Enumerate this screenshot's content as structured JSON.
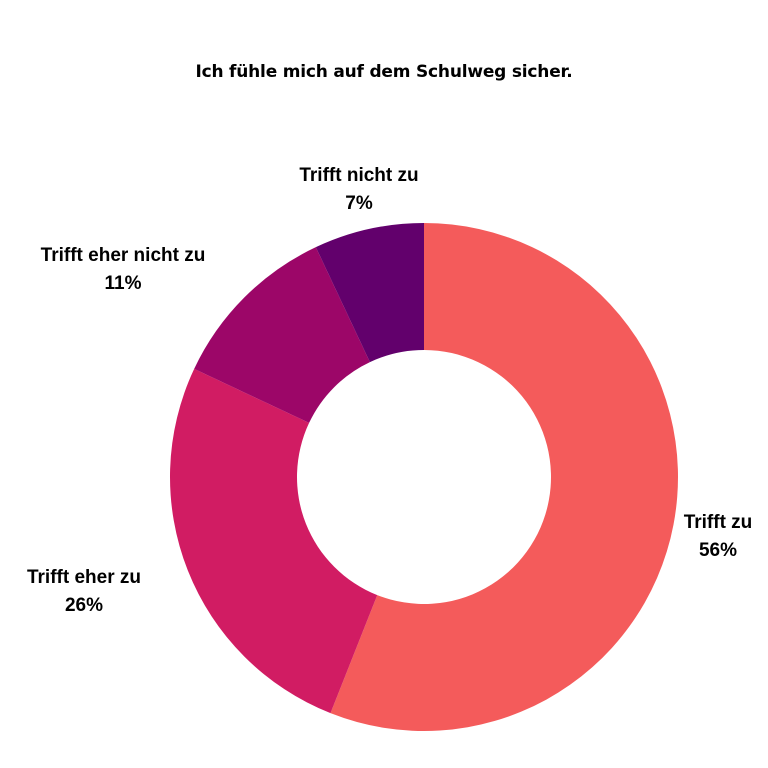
{
  "chart_data": {
    "type": "pie",
    "title": "Ich fühle mich auf dem Schulweg sicher.",
    "slices": [
      {
        "label": "Trifft zu",
        "value": 56,
        "value_label": "56%",
        "color": "#f45b5b"
      },
      {
        "label": "Trifft eher zu",
        "value": 26,
        "value_label": "26%",
        "color": "#d11c63"
      },
      {
        "label": "Trifft eher nicht zu",
        "value": 11,
        "value_label": "11%",
        "color": "#9c0668"
      },
      {
        "label": "Trifft nicht zu",
        "value": 7,
        "value_label": "7%",
        "color": "#62006c"
      }
    ],
    "hole": "donut",
    "start": "12 o'clock",
    "direction": "clockwise",
    "legend": "none"
  }
}
